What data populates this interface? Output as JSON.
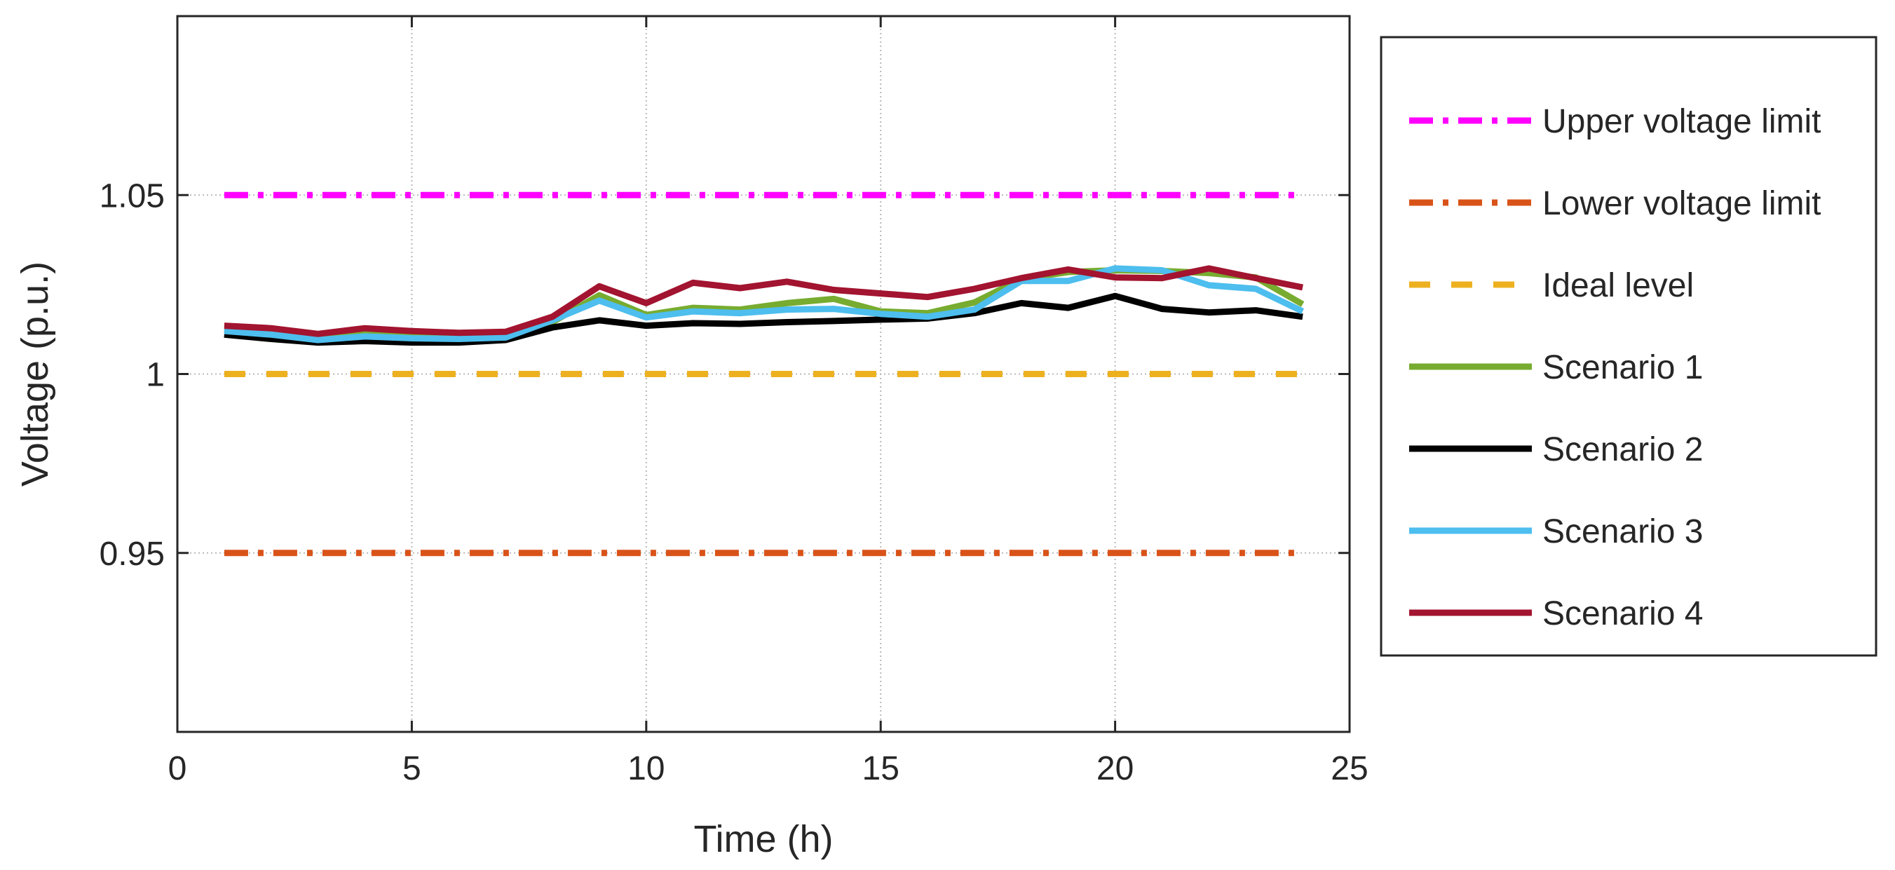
{
  "chart_data": {
    "type": "line",
    "title": "",
    "xlabel": "Time (h)",
    "ylabel": "Voltage (p.u.)",
    "xlim": [
      0,
      25
    ],
    "ylim": [
      0.9,
      1.1
    ],
    "xticks": [
      0,
      5,
      10,
      15,
      20,
      25
    ],
    "xtick_labels": [
      "0",
      "5",
      "10",
      "15",
      "20",
      "25"
    ],
    "yticks": [
      0.95,
      1.0,
      1.05
    ],
    "ytick_labels": [
      "0.95",
      "1",
      "1.05"
    ],
    "grid": true,
    "legend_position": "outside-right",
    "x": [
      1,
      2,
      3,
      4,
      5,
      6,
      7,
      8,
      9,
      10,
      11,
      12,
      13,
      14,
      15,
      16,
      17,
      18,
      19,
      20,
      21,
      22,
      23,
      24
    ],
    "series": [
      {
        "name": "Upper voltage limit",
        "style": "dashdot",
        "color": "#ff00ff",
        "values": [
          1.05,
          1.05,
          1.05,
          1.05,
          1.05,
          1.05,
          1.05,
          1.05,
          1.05,
          1.05,
          1.05,
          1.05,
          1.05,
          1.05,
          1.05,
          1.05,
          1.05,
          1.05,
          1.05,
          1.05,
          1.05,
          1.05,
          1.05,
          1.05
        ]
      },
      {
        "name": "Lower voltage limit",
        "style": "dashdot",
        "color": "#d95319",
        "values": [
          0.95,
          0.95,
          0.95,
          0.95,
          0.95,
          0.95,
          0.95,
          0.95,
          0.95,
          0.95,
          0.95,
          0.95,
          0.95,
          0.95,
          0.95,
          0.95,
          0.95,
          0.95,
          0.95,
          0.95,
          0.95,
          0.95,
          0.95,
          0.95
        ]
      },
      {
        "name": "Ideal level",
        "style": "dashed",
        "color": "#edb120",
        "values": [
          1.0,
          1.0,
          1.0,
          1.0,
          1.0,
          1.0,
          1.0,
          1.0,
          1.0,
          1.0,
          1.0,
          1.0,
          1.0,
          1.0,
          1.0,
          1.0,
          1.0,
          1.0,
          1.0,
          1.0,
          1.0,
          1.0,
          1.0,
          1.0
        ]
      },
      {
        "name": "Scenario 1",
        "style": "solid",
        "color": "#77ac30",
        "values": [
          1.0125,
          1.0115,
          1.01,
          1.0112,
          1.0108,
          1.0105,
          1.0108,
          1.0145,
          1.022,
          1.0165,
          1.0185,
          1.018,
          1.0198,
          1.021,
          1.0175,
          1.017,
          1.02,
          1.0265,
          1.0285,
          1.029,
          1.0288,
          1.0282,
          1.027,
          1.0195
        ]
      },
      {
        "name": "Scenario 2",
        "style": "solid",
        "color": "#000000",
        "values": [
          1.011,
          1.0098,
          1.0088,
          1.0092,
          1.0088,
          1.0088,
          1.0095,
          1.013,
          1.015,
          1.0135,
          1.0142,
          1.014,
          1.0145,
          1.0148,
          1.0152,
          1.0155,
          1.017,
          1.0198,
          1.0185,
          1.0218,
          1.0182,
          1.0172,
          1.0178,
          1.016
        ]
      },
      {
        "name": "Scenario 3",
        "style": "solid",
        "color": "#4dbeee",
        "values": [
          1.012,
          1.011,
          1.0095,
          1.0105,
          1.01,
          1.0098,
          1.0102,
          1.015,
          1.0205,
          1.0158,
          1.0175,
          1.017,
          1.018,
          1.0182,
          1.0168,
          1.016,
          1.018,
          1.026,
          1.026,
          1.0295,
          1.029,
          1.0248,
          1.0238,
          1.0175
        ]
      },
      {
        "name": "Scenario 4",
        "style": "solid",
        "color": "#a2142f",
        "values": [
          1.0135,
          1.0128,
          1.0112,
          1.0128,
          1.012,
          1.0115,
          1.0118,
          1.016,
          1.0245,
          1.0198,
          1.0255,
          1.024,
          1.0258,
          1.0235,
          1.0225,
          1.0215,
          1.0238,
          1.0268,
          1.0292,
          1.027,
          1.0268,
          1.0295,
          1.0268,
          1.0242
        ]
      }
    ]
  }
}
